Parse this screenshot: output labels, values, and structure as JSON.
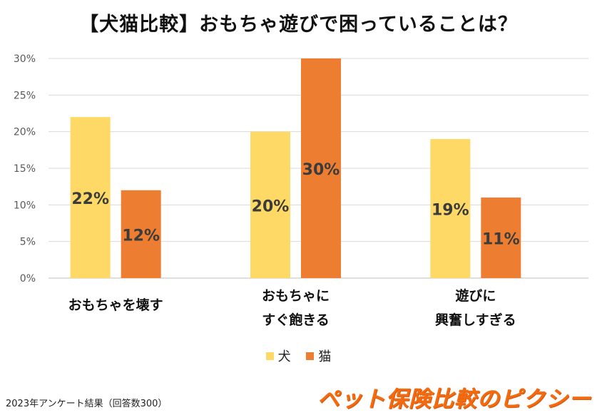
{
  "title": "【犬猫比較】おもちゃ遊びで困っていることは？",
  "chart_data": {
    "type": "bar",
    "title": "【犬猫比較】おもちゃ遊びで困っていることは？",
    "categories": [
      [
        "おもちゃを壊す"
      ],
      [
        "おもちゃに",
        "すぐ飽きる"
      ],
      [
        "遊びに",
        "興奮しすぎる"
      ]
    ],
    "series": [
      {
        "name": "犬",
        "values": [
          22,
          20,
          19
        ],
        "color": "#FFD966",
        "labels": [
          "22%",
          "20%",
          "19%"
        ]
      },
      {
        "name": "猫",
        "values": [
          12,
          30,
          11
        ],
        "color": "#ED7D31",
        "labels": [
          "12%",
          "30%",
          "11%"
        ]
      }
    ],
    "ylim": [
      0,
      30
    ],
    "yticks": [
      "0%",
      "5%",
      "10%",
      "15%",
      "20%",
      "25%",
      "30%"
    ],
    "grid": true,
    "legend": "bottom-center",
    "xlabel": "",
    "ylabel": ""
  },
  "legend": {
    "dog": "犬",
    "cat": "猫"
  },
  "footnote": "2023年アンケート結果（回答数300）",
  "brand": "ペット保険比較のピクシー"
}
